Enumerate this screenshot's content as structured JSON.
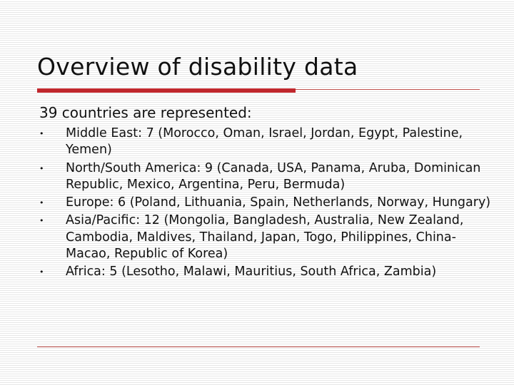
{
  "slide": {
    "title": "Overview of disability data",
    "subtitle": "39 countries are represented:",
    "bullet_symbol": "•",
    "items": [
      "Middle East: 7 (Morocco, Oman, Israel, Jordan, Egypt, Palestine, Yemen)",
      "North/South America: 9 (Canada, USA, Panama, Aruba, Dominican Republic, Mexico, Argentina, Peru, Bermuda)",
      "Europe: 6 (Poland, Lithuania, Spain, Netherlands, Norway, Hungary)",
      "Asia/Pacific: 12 (Mongolia, Bangladesh, Australia, New Zealand, Cambodia, Maldives, Thailand, Japan, Togo, Philippines, China-Macao, Republic of Korea)",
      "Africa: 5 (Lesotho, Malawi, Mauritius, South Africa, Zambia)"
    ]
  },
  "colors": {
    "accent_red": "#c0272d",
    "text": "#111111",
    "background_stripe": "#e7e7e7"
  }
}
